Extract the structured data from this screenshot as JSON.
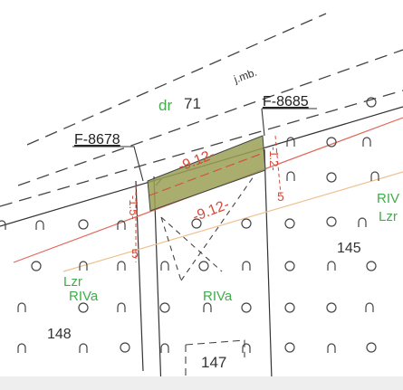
{
  "labels": {
    "dr": "dr",
    "parcel_71": "71",
    "jmb": "j.mb.",
    "parcel_148": "148",
    "parcel_145": "145",
    "parcel_147": "147"
  },
  "references": {
    "left": "F-8678",
    "right": "F-8685"
  },
  "dimensions": {
    "top": "-9.12-",
    "bottom": "-9.12-",
    "left_side": "-1.5-",
    "left_end": "5",
    "right_side": "-1.2-",
    "right_end": "5"
  },
  "zones": {
    "lzr_left": "Lzr",
    "riva_left": "RIVa",
    "riva_center": "RIVa",
    "riv_right": "RIV",
    "lzr_right": "Lzr"
  },
  "colors": {
    "dimension_red": "#d84a3a",
    "boundary_red": "#e06a5a",
    "parcel_fill": "#9aa055",
    "zone_green": "#3fae4a",
    "orange_line": "#f0c090",
    "line_dark": "#333333"
  }
}
